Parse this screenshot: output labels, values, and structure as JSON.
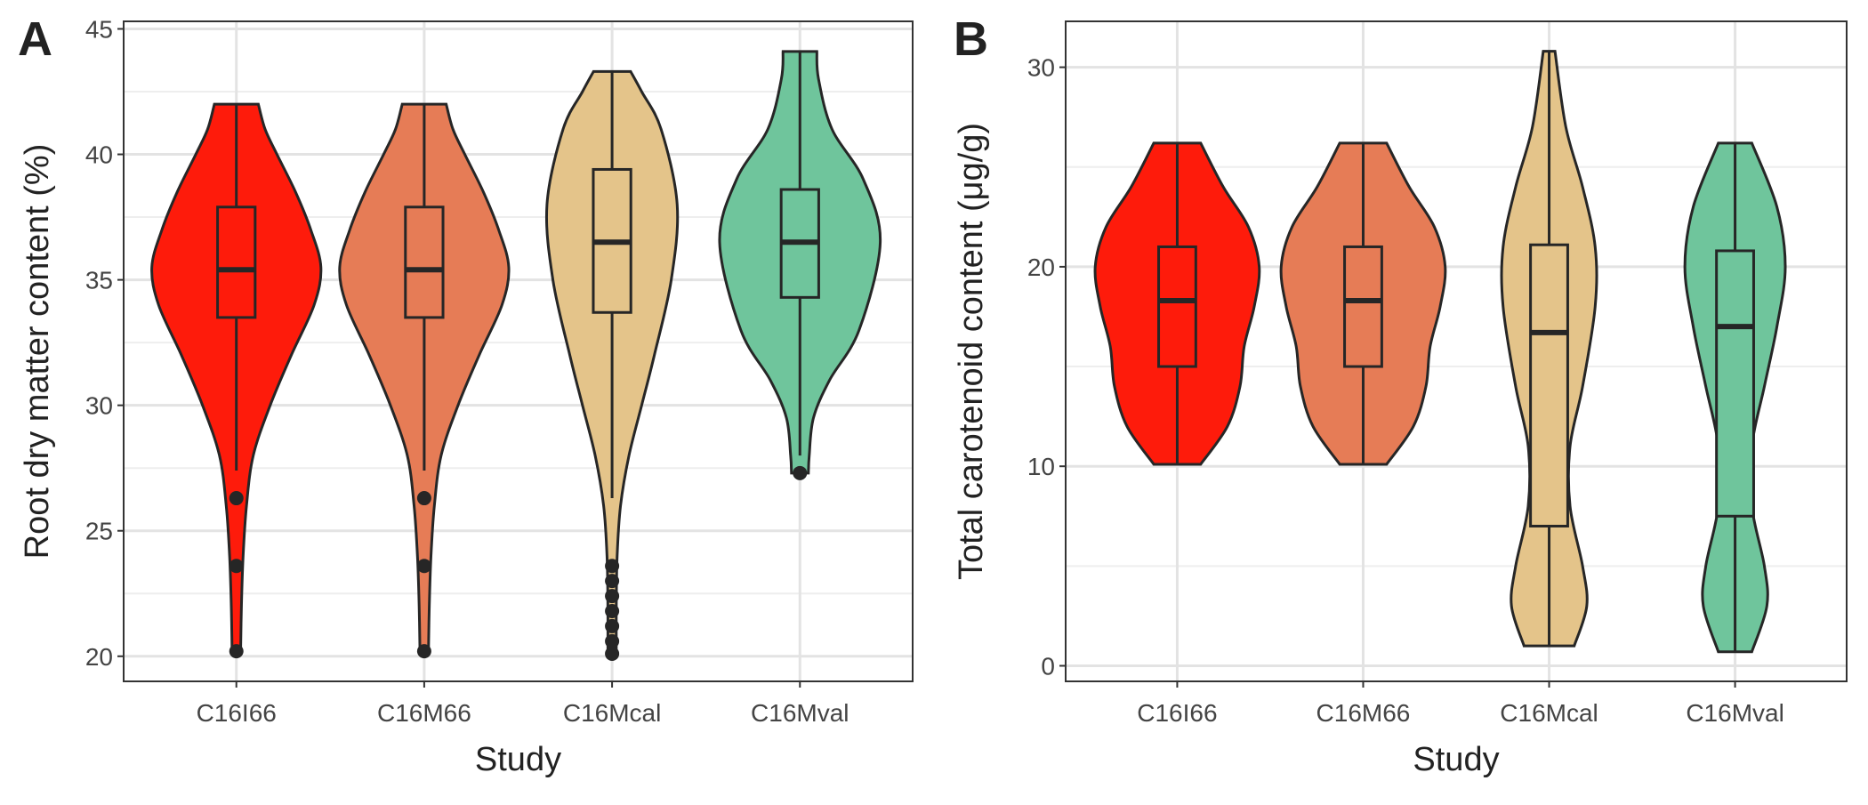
{
  "chart_data": [
    {
      "type": "violin",
      "panel_label": "A",
      "x_label": "Study",
      "y_label": "Root dry matter content (%)",
      "categories": [
        "C16I66",
        "C16M66",
        "C16Mcal",
        "C16Mval"
      ],
      "ylim": [
        19.0,
        45.3
      ],
      "yticks": [
        20,
        25,
        30,
        35,
        40,
        45
      ],
      "grid": true,
      "violins": [
        {
          "color": "#fe1b0b",
          "whisker_low": 27.4,
          "q1": 33.5,
          "median": 35.4,
          "q3": 37.9,
          "whisker_high": 42,
          "outliers": [
            26.3,
            23.6,
            20.2
          ],
          "density_y": [
            20.1,
            22,
            24,
            26,
            28,
            30,
            32,
            34,
            35.5,
            37,
            38.5,
            40,
            41,
            42
          ],
          "density": [
            0.05,
            0.06,
            0.08,
            0.12,
            0.2,
            0.4,
            0.65,
            0.92,
            1.0,
            0.88,
            0.7,
            0.48,
            0.34,
            0.26
          ]
        },
        {
          "color": "#e67c56",
          "whisker_low": 27.4,
          "q1": 33.5,
          "median": 35.4,
          "q3": 37.9,
          "whisker_high": 42,
          "outliers": [
            26.3,
            23.6,
            20.2
          ],
          "density_y": [
            20.1,
            22,
            24,
            26,
            28,
            30,
            32,
            34,
            35.5,
            37,
            38.5,
            40,
            41,
            42
          ],
          "density": [
            0.05,
            0.06,
            0.08,
            0.12,
            0.2,
            0.4,
            0.65,
            0.92,
            1.0,
            0.88,
            0.7,
            0.48,
            0.34,
            0.26
          ]
        },
        {
          "color": "#e4c48a",
          "whisker_low": 26.3,
          "q1": 33.7,
          "median": 36.5,
          "q3": 39.4,
          "whisker_high": 43.3,
          "outliers": [
            23.6,
            23.0,
            22.4,
            21.8,
            21.2,
            20.6,
            20.1
          ],
          "density_y": [
            20.1,
            22,
            24,
            26,
            28,
            30,
            32,
            35,
            38,
            41,
            42.5,
            43.3
          ],
          "density": [
            0.05,
            0.05,
            0.06,
            0.1,
            0.2,
            0.35,
            0.5,
            0.7,
            0.77,
            0.58,
            0.35,
            0.22
          ]
        },
        {
          "color": "#6fc59c",
          "whisker_low": 28.0,
          "q1": 34.3,
          "median": 36.5,
          "q3": 38.6,
          "whisker_high": 44.1,
          "outliers": [
            27.3
          ],
          "density_y": [
            27.3,
            28,
            29.5,
            31,
            33,
            36.5,
            39,
            41,
            43,
            44.1
          ],
          "density": [
            0.1,
            0.11,
            0.16,
            0.35,
            0.7,
            0.95,
            0.75,
            0.38,
            0.22,
            0.2
          ]
        }
      ]
    },
    {
      "type": "violin",
      "panel_label": "B",
      "x_label": "Study",
      "y_label": "Total carotenoid content (μg/g)",
      "categories": [
        "C16I66",
        "C16M66",
        "C16Mcal",
        "C16Mval"
      ],
      "ylim": [
        -0.78,
        32.3
      ],
      "yticks": [
        0,
        10,
        20,
        30
      ],
      "grid": true,
      "violins": [
        {
          "color": "#fe1b0b",
          "whisker_low": 10.1,
          "q1": 15,
          "median": 18.3,
          "q3": 21,
          "whisker_high": 26.2,
          "outliers": [],
          "density_y": [
            10.1,
            12,
            14,
            16,
            18,
            20,
            22,
            24,
            26.2
          ],
          "density": [
            0.28,
            0.6,
            0.75,
            0.8,
            0.92,
            0.98,
            0.85,
            0.55,
            0.28
          ]
        },
        {
          "color": "#e67c56",
          "whisker_low": 10.1,
          "q1": 15,
          "median": 18.3,
          "q3": 21,
          "whisker_high": 26.2,
          "outliers": [],
          "density_y": [
            10.1,
            12,
            14,
            16,
            18,
            20,
            22,
            24,
            26.2
          ],
          "density": [
            0.28,
            0.6,
            0.75,
            0.8,
            0.92,
            0.98,
            0.85,
            0.55,
            0.28
          ]
        },
        {
          "color": "#e4c48a",
          "whisker_low": 1,
          "q1": 7,
          "median": 16.7,
          "q3": 21.1,
          "whisker_high": 30.8,
          "outliers": [],
          "density_y": [
            1,
            3,
            5,
            8,
            11,
            14,
            18,
            21,
            24,
            27,
            30.8
          ],
          "density": [
            0.3,
            0.45,
            0.4,
            0.25,
            0.25,
            0.4,
            0.55,
            0.55,
            0.4,
            0.2,
            0.07
          ]
        },
        {
          "color": "#6fc59c",
          "whisker_low": 0.7,
          "q1": 7.5,
          "median": 17,
          "q3": 20.8,
          "whisker_high": 26.2,
          "outliers": [],
          "density_y": [
            0.7,
            3,
            5,
            8,
            11,
            14,
            17,
            20,
            23,
            26.2
          ],
          "density": [
            0.2,
            0.38,
            0.35,
            0.2,
            0.2,
            0.35,
            0.5,
            0.6,
            0.5,
            0.2
          ]
        }
      ]
    }
  ]
}
